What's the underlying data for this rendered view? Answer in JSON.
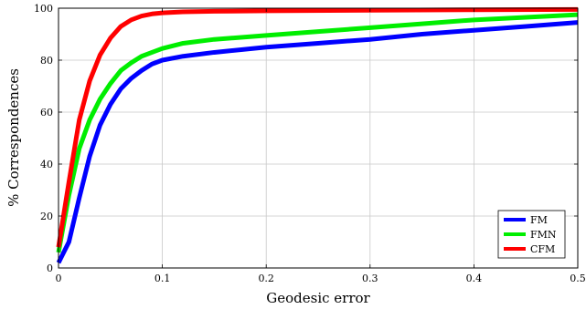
{
  "chart_data": {
    "type": "line",
    "title": "",
    "xlabel": "Geodesic error",
    "ylabel": "% Correspondences",
    "xlim": [
      0,
      0.5
    ],
    "ylim": [
      0,
      100
    ],
    "xticks": [
      0,
      0.1,
      0.2,
      0.3,
      0.4,
      0.5
    ],
    "xtick_labels": [
      "0",
      "0.1",
      "0.2",
      "0.3",
      "0.4",
      "0.5"
    ],
    "yticks": [
      0,
      20,
      40,
      60,
      80,
      100
    ],
    "ytick_labels": [
      "0",
      "20",
      "40",
      "60",
      "80",
      "100"
    ],
    "grid": true,
    "legend_position": "bottom-right",
    "series": [
      {
        "name": "FM",
        "color": "#0000ff",
        "x": [
          0,
          0.01,
          0.02,
          0.03,
          0.04,
          0.05,
          0.06,
          0.07,
          0.08,
          0.09,
          0.1,
          0.12,
          0.15,
          0.2,
          0.25,
          0.3,
          0.35,
          0.4,
          0.45,
          0.5
        ],
        "y": [
          2,
          10,
          27,
          43,
          55,
          63,
          69,
          73,
          76,
          78.5,
          80,
          81.5,
          83,
          85,
          86.5,
          88,
          90,
          91.5,
          93,
          94.5
        ]
      },
      {
        "name": "FMN",
        "color": "#00ee00",
        "x": [
          0,
          0.01,
          0.02,
          0.03,
          0.04,
          0.05,
          0.06,
          0.07,
          0.08,
          0.09,
          0.1,
          0.12,
          0.15,
          0.2,
          0.25,
          0.3,
          0.35,
          0.4,
          0.45,
          0.5
        ],
        "y": [
          6,
          28,
          46,
          57,
          65,
          71,
          76,
          79,
          81.5,
          83,
          84.5,
          86.5,
          88,
          89.5,
          91,
          92.5,
          94,
          95.5,
          96.5,
          97.5
        ]
      },
      {
        "name": "CFM",
        "color": "#ff0000",
        "x": [
          0,
          0.01,
          0.02,
          0.03,
          0.04,
          0.05,
          0.06,
          0.07,
          0.08,
          0.09,
          0.1,
          0.12,
          0.15,
          0.2,
          0.3,
          0.4,
          0.5
        ],
        "y": [
          8,
          33,
          57,
          72,
          82,
          88.5,
          93,
          95.5,
          97,
          97.8,
          98.2,
          98.6,
          98.8,
          99,
          99.2,
          99.4,
          99.5
        ]
      }
    ]
  }
}
